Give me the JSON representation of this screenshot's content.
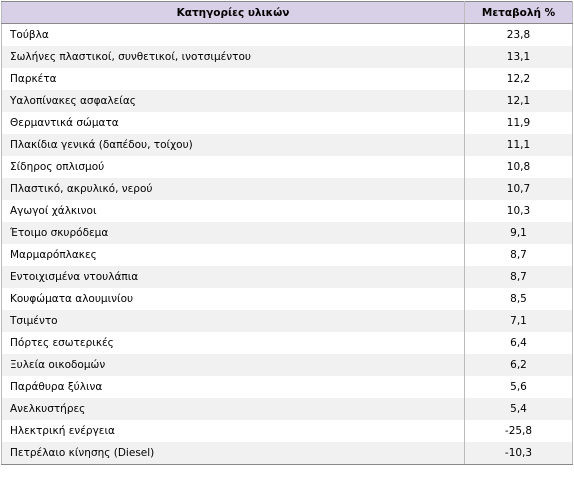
{
  "table": {
    "header": [
      "Κατηγορίες υλικών",
      "Μεταβολή %"
    ],
    "rows": [
      [
        "Τούβλα",
        "23,8"
      ],
      [
        "Σωλήνες πλαστικοί, συνθετικοί, ινοτσιμέντου",
        "13,1"
      ],
      [
        "Παρκέτα",
        "12,2"
      ],
      [
        "Υαλοπίνακες ασφαλείας",
        "12,1"
      ],
      [
        "Θερμαντικά σώματα",
        "11,9"
      ],
      [
        "Πλακίδια γενικά (δαπέδου, τοίχου)",
        "11,1"
      ],
      [
        "Σίδηρος οπλισμού",
        "10,8"
      ],
      [
        "Πλαστικό, ακρυλικό, νερού",
        "10,7"
      ],
      [
        "Αγωγοί χάλκινοι",
        "10,3"
      ],
      [
        "Έτοιμο σκυρόδεμα",
        "9,1"
      ],
      [
        "Μαρμαρόπλακες",
        "8,7"
      ],
      [
        "Εντοιχισμένα ντουλάπια",
        "8,7"
      ],
      [
        "Κουφώματα αλουμινίου",
        "8,5"
      ],
      [
        "Τσιμέντο",
        "7,1"
      ],
      [
        "Πόρτες εσωτερικές",
        "6,4"
      ],
      [
        "Ξυλεία οικοδομών",
        "6,2"
      ],
      [
        "Παράθυρα ξύλινα",
        "5,6"
      ],
      [
        "Ανελκυστήρες",
        "5,4"
      ],
      [
        "Ηλεκτρική ενέργεια",
        "-25,8"
      ],
      [
        "Πετρέλαιο κίνησης (Diesel)",
        "-10,3"
      ]
    ]
  }
}
